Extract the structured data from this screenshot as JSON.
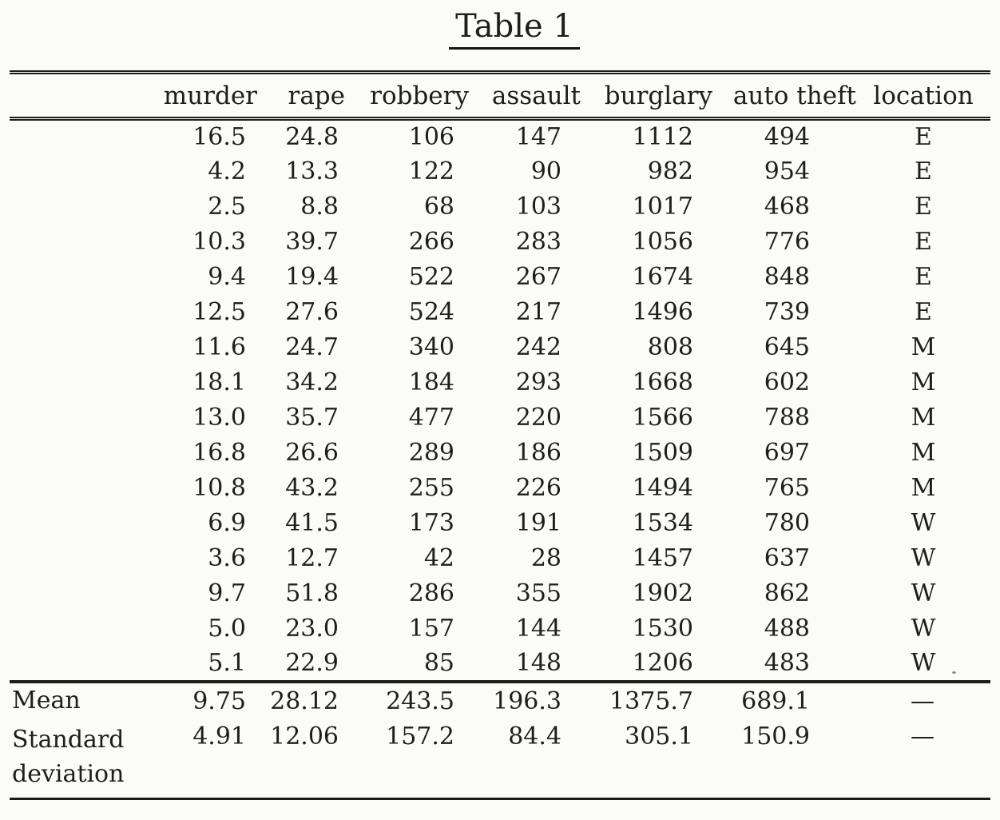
{
  "page": {
    "title": "Table 1"
  },
  "table": {
    "columns": [
      "murder",
      "rape",
      "robbery",
      "assault",
      "burglary",
      "auto theft",
      "location"
    ],
    "rows": [
      [
        "16.5",
        "24.8",
        "106",
        "147",
        "1112",
        "494",
        "E"
      ],
      [
        "4.2",
        "13.3",
        "122",
        "90",
        "982",
        "954",
        "E"
      ],
      [
        "2.5",
        "8.8",
        "68",
        "103",
        "1017",
        "468",
        "E"
      ],
      [
        "10.3",
        "39.7",
        "266",
        "283",
        "1056",
        "776",
        "E"
      ],
      [
        "9.4",
        "19.4",
        "522",
        "267",
        "1674",
        "848",
        "E"
      ],
      [
        "12.5",
        "27.6",
        "524",
        "217",
        "1496",
        "739",
        "E"
      ],
      [
        "11.6",
        "24.7",
        "340",
        "242",
        "808",
        "645",
        "M"
      ],
      [
        "18.1",
        "34.2",
        "184",
        "293",
        "1668",
        "602",
        "M"
      ],
      [
        "13.0",
        "35.7",
        "477",
        "220",
        "1566",
        "788",
        "M"
      ],
      [
        "16.8",
        "26.6",
        "289",
        "186",
        "1509",
        "697",
        "M"
      ],
      [
        "10.8",
        "43.2",
        "255",
        "226",
        "1494",
        "765",
        "M"
      ],
      [
        "6.9",
        "41.5",
        "173",
        "191",
        "1534",
        "780",
        "W"
      ],
      [
        "3.6",
        "12.7",
        "42",
        "28",
        "1457",
        "637",
        "W"
      ],
      [
        "9.7",
        "51.8",
        "286",
        "355",
        "1902",
        "862",
        "W"
      ],
      [
        "5.0",
        "23.0",
        "157",
        "144",
        "1530",
        "488",
        "W"
      ],
      [
        "5.1",
        "22.9",
        "85",
        "148",
        "1206",
        "483",
        "W"
      ]
    ],
    "summary": [
      {
        "label": "Mean",
        "values": [
          "9.75",
          "28.12",
          "243.5",
          "196.3",
          "1375.7",
          "689.1",
          "—"
        ]
      },
      {
        "label": "Standard deviation",
        "values": [
          "4.91",
          "12.06",
          "157.2",
          "84.4",
          "305.1",
          "150.9",
          "—"
        ]
      }
    ]
  }
}
